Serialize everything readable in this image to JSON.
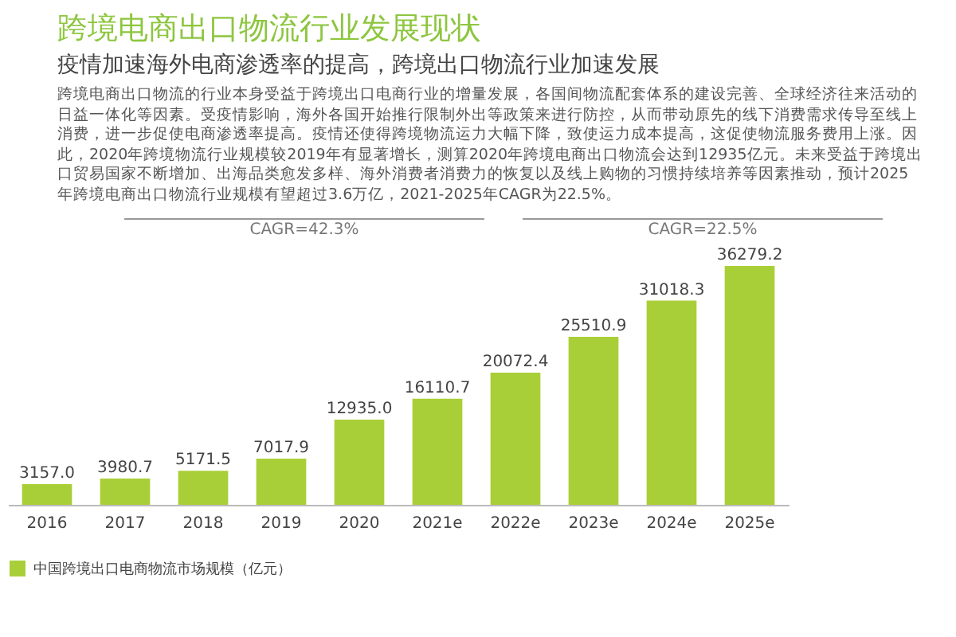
{
  "chart_data": {
    "type": "bar",
    "title": "跨境电商出口物流行业发展现状",
    "subtitle": "疫情加速海外电商渗透率的提高，跨境出口物流行业加速发展",
    "annotations": [
      "跨境电商出口物流的行业本身受益于跨境出口电商行业的增量发展，各国间物流配套体系的建设完善、全球经济往来活动的日益一体化等因素。受疫情影响，海外各国开始推行限制外出等政策来进行防控，从而带动原先的线下消费需求传导至线上消费，进一步促使电商渗透率提高。疫情还使得跨境物流运力大幅下降，致使运力成本提高，这促使物流服务费用上涨。因此，2020年跨境物流行业规模较2019年有显著增长，测算2020年跨境电商出口物流会达到12935亿元。未来受益于跨境出口贸易国家不断增加、出海品类愈发多样、海外消费者消费力的恢复以及线上购物的习惯持续培养等因素推动，预计2025年跨境电商出口物流行业规模有望超过3.6万亿，2021-2025年CAGR为22.5%。",
      "CAGR=42.3%",
      "CAGR=22.5%"
    ],
    "categories": [
      "2016",
      "2017",
      "2018",
      "2019",
      "2020",
      "2021e",
      "2022e",
      "2023e",
      "2024e",
      "2025e"
    ],
    "series": [
      {
        "name": "中国跨境出口电商物流市场规模（亿元）",
        "color": "#a9cf38",
        "values": [
          3157.0,
          3980.7,
          5171.5,
          7017.9,
          12935.0,
          16110.7,
          20072.4,
          25510.9,
          31018.3,
          36279.2
        ],
        "value_labels": [
          "3157.0",
          "3980.7",
          "5171.5",
          "7017.9",
          "12935.0",
          "16110.7",
          "20072.4",
          "25510.9",
          "31018.3",
          "36279.2"
        ]
      }
    ],
    "legend": "bottom"
  }
}
